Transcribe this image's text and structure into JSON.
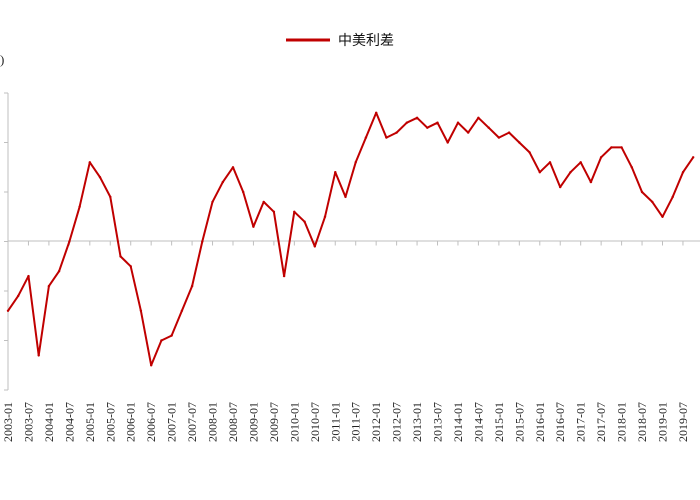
{
  "chart_data": {
    "type": "line",
    "title": "",
    "xlabel": "",
    "ylabel": "",
    "legend": {
      "placement": "top-center"
    },
    "axis_left_fragment": ")",
    "grid": false,
    "colors": {
      "series": "#c00000",
      "axis": "#bfbfbf",
      "text": "#222222"
    },
    "x_tick_labels": [
      "2003-01",
      "2003-07",
      "2004-01",
      "2004-07",
      "2005-01",
      "2005-07",
      "2006-01",
      "2006-07",
      "2007-01",
      "2007-07",
      "2008-01",
      "2008-07",
      "2009-01",
      "2009-07",
      "2010-01",
      "2010-07",
      "2011-01",
      "2011-07",
      "2012-01",
      "2012-07",
      "2013-01",
      "2013-07",
      "2014-01",
      "2014-07",
      "2015-01",
      "2015-07",
      "2016-01",
      "2016-07",
      "2017-01",
      "2017-07",
      "2018-01",
      "2018-07",
      "2019-01",
      "2019-07"
    ],
    "ylim": [
      -3,
      3
    ],
    "series": [
      {
        "name": "中美利差",
        "x": [
          "2003-01",
          "2003-04",
          "2003-07",
          "2003-10",
          "2004-01",
          "2004-04",
          "2004-07",
          "2004-10",
          "2005-01",
          "2005-04",
          "2005-07",
          "2005-10",
          "2006-01",
          "2006-04",
          "2006-07",
          "2006-10",
          "2007-01",
          "2007-04",
          "2007-07",
          "2007-10",
          "2008-01",
          "2008-04",
          "2008-07",
          "2008-10",
          "2009-01",
          "2009-04",
          "2009-07",
          "2009-10",
          "2010-01",
          "2010-04",
          "2010-07",
          "2010-10",
          "2011-01",
          "2011-04",
          "2011-07",
          "2011-10",
          "2012-01",
          "2012-04",
          "2012-07",
          "2012-10",
          "2013-01",
          "2013-04",
          "2013-07",
          "2013-10",
          "2014-01",
          "2014-04",
          "2014-07",
          "2014-10",
          "2015-01",
          "2015-04",
          "2015-07",
          "2015-10",
          "2016-01",
          "2016-04",
          "2016-07",
          "2016-10",
          "2017-01",
          "2017-04",
          "2017-07",
          "2017-10",
          "2018-01",
          "2018-04",
          "2018-07",
          "2018-10",
          "2019-01",
          "2019-04",
          "2019-07",
          "2019-10"
        ],
        "values": [
          -1.4,
          -1.1,
          -0.7,
          -2.3,
          -0.9,
          -0.6,
          0.0,
          0.7,
          1.6,
          1.3,
          0.9,
          -0.3,
          -0.5,
          -1.4,
          -2.5,
          -2.0,
          -1.9,
          -1.4,
          -0.9,
          0.0,
          0.8,
          1.2,
          1.5,
          1.0,
          0.3,
          0.8,
          0.6,
          -0.7,
          0.6,
          0.4,
          -0.1,
          0.5,
          1.4,
          0.9,
          1.6,
          2.1,
          2.6,
          2.1,
          2.2,
          2.4,
          2.5,
          2.3,
          2.4,
          2.0,
          2.4,
          2.2,
          2.5,
          2.3,
          2.1,
          2.2,
          2.0,
          1.8,
          1.4,
          1.6,
          1.1,
          1.4,
          1.6,
          1.2,
          1.7,
          1.9,
          1.9,
          1.5,
          1.0,
          0.8,
          0.5,
          0.9,
          1.4,
          1.7
        ]
      }
    ]
  }
}
